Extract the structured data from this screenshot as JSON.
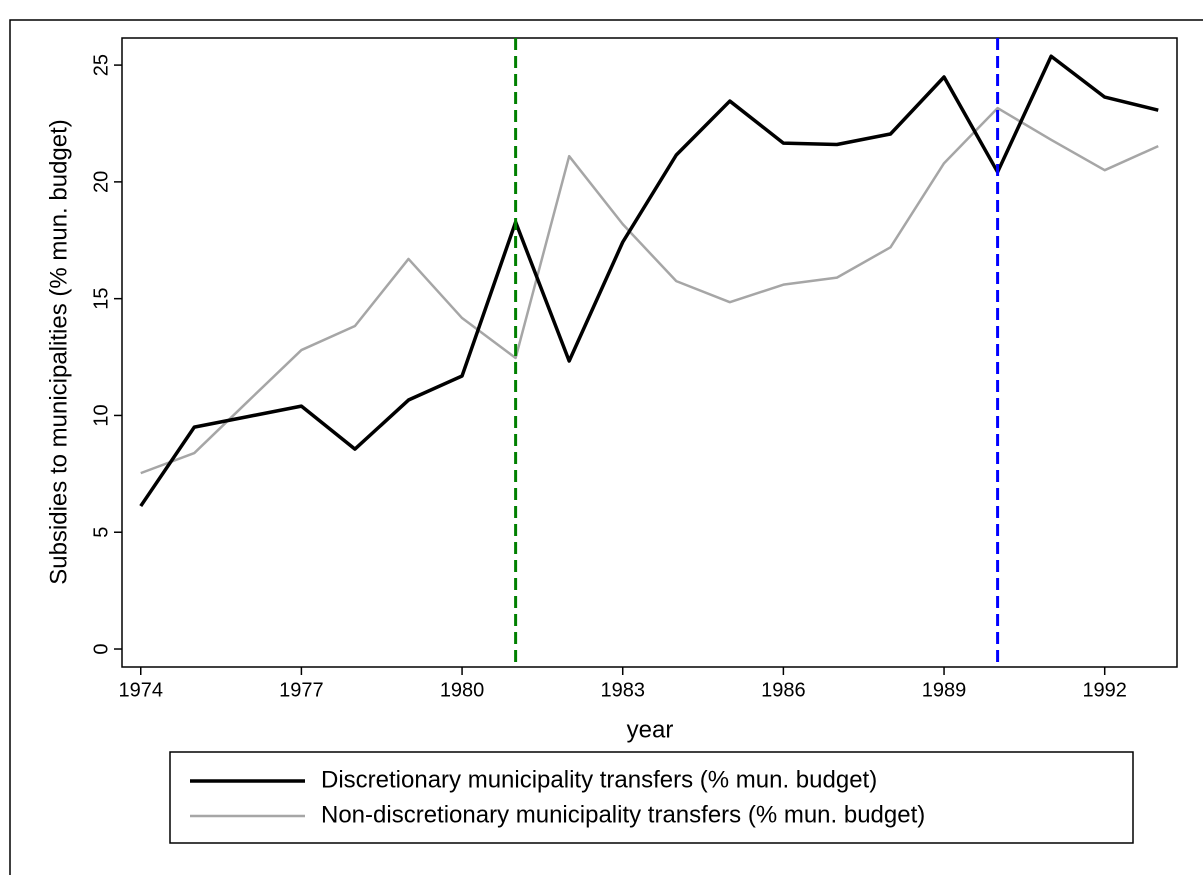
{
  "chart_data": {
    "type": "line",
    "x": [
      1974,
      1975,
      1976,
      1977,
      1978,
      1979,
      1980,
      1981,
      1982,
      1983,
      1984,
      1985,
      1986,
      1987,
      1988,
      1989,
      1990,
      1991,
      1992,
      1993
    ],
    "series": [
      {
        "name": "Discretionary municipality transfers (% mun. budget)",
        "color": "#000000",
        "width": 3.5,
        "values": [
          6.12,
          9.5,
          9.95,
          10.4,
          8.56,
          10.66,
          11.69,
          18.28,
          12.33,
          17.42,
          21.15,
          23.46,
          21.66,
          21.6,
          22.05,
          24.49,
          20.42,
          25.38,
          23.63,
          23.07
        ]
      },
      {
        "name": "Non-discretionary municipality transfers (% mun. budget)",
        "color": "#a6a6a6",
        "width": 2.5,
        "values": [
          7.53,
          8.39,
          10.6,
          12.8,
          13.83,
          16.7,
          14.17,
          12.46,
          21.1,
          18.19,
          15.75,
          14.85,
          15.6,
          15.9,
          17.2,
          20.8,
          23.16,
          21.8,
          20.5,
          21.53
        ]
      }
    ],
    "vlines": [
      {
        "x": 1981,
        "color": "#008000"
      },
      {
        "x": 1990,
        "color": "#0000ff"
      }
    ],
    "xlabel": "year",
    "ylabel": "Subsidies to municipalities (% mun. budget)",
    "xlim": [
      1973.65,
      1993.35
    ],
    "xticks": [
      1974,
      1977,
      1980,
      1983,
      1986,
      1989,
      1992
    ],
    "ylim": [
      -0.77,
      26.16
    ],
    "yticks": [
      0,
      5,
      10,
      15,
      20,
      25
    ],
    "grid": false
  }
}
